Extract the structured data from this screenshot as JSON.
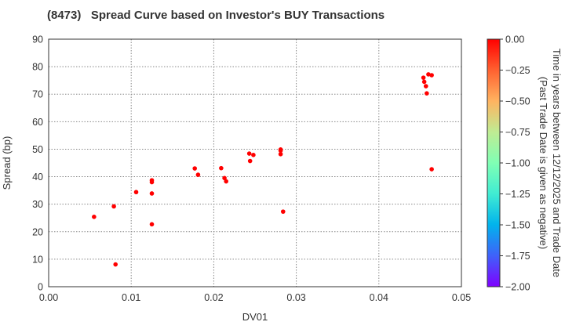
{
  "title": "(8473)   Spread Curve based on Investor's BUY Transactions",
  "colors": {
    "point": "#ff0000",
    "grid": "#888888",
    "axis": "#333333",
    "colormap": [
      "#7f00ff",
      "#3f61fa",
      "#01b3ec",
      "#40ecd3",
      "#80ffb4",
      "#bfec93",
      "#ffb360",
      "#ff6130",
      "#ff0000"
    ]
  },
  "colorbar": {
    "label_line1": "Time in years between 12/12/2025 and Trade Date",
    "label_line2": "(Past Trade Date is given as negative)",
    "ticks": [
      "0.00",
      "−0.25",
      "−0.50",
      "−0.75",
      "−1.00",
      "−1.25",
      "−1.50",
      "−1.75",
      "−2.00"
    ],
    "range": [
      -2.0,
      0.0
    ]
  },
  "chart_data": {
    "type": "scatter",
    "title": "(8473)   Spread Curve based on Investor's BUY Transactions",
    "xlabel": "DV01",
    "ylabel": "Spread (bp)",
    "xlim": [
      0.0,
      0.05
    ],
    "ylim": [
      0,
      90
    ],
    "xticks": [
      "0.00",
      "0.01",
      "0.02",
      "0.03",
      "0.04",
      "0.05"
    ],
    "yticks": [
      "0",
      "10",
      "20",
      "30",
      "40",
      "50",
      "60",
      "70",
      "80",
      "90"
    ],
    "grid": true,
    "legend": "colorbar right: Time in years between 12/12/2025 and Trade Date (Past Trade Date is given as negative), range -2.00 to 0.00",
    "points": [
      {
        "x": 0.0055,
        "y": 25.4,
        "t": 0.0
      },
      {
        "x": 0.0079,
        "y": 29.2,
        "t": 0.0
      },
      {
        "x": 0.0081,
        "y": 8.1,
        "t": 0.0
      },
      {
        "x": 0.0106,
        "y": 34.4,
        "t": 0.0
      },
      {
        "x": 0.0125,
        "y": 38.7,
        "t": 0.0
      },
      {
        "x": 0.0125,
        "y": 38.0,
        "t": 0.0
      },
      {
        "x": 0.0125,
        "y": 33.9,
        "t": 0.0
      },
      {
        "x": 0.0125,
        "y": 22.7,
        "t": 0.0
      },
      {
        "x": 0.0177,
        "y": 43.0,
        "t": 0.0
      },
      {
        "x": 0.0181,
        "y": 40.7,
        "t": 0.0
      },
      {
        "x": 0.0209,
        "y": 43.1,
        "t": 0.0
      },
      {
        "x": 0.0213,
        "y": 39.5,
        "t": 0.0
      },
      {
        "x": 0.0215,
        "y": 38.3,
        "t": 0.0
      },
      {
        "x": 0.0243,
        "y": 48.4,
        "t": 0.0
      },
      {
        "x": 0.0248,
        "y": 47.9,
        "t": 0.0
      },
      {
        "x": 0.0244,
        "y": 45.7,
        "t": 0.0
      },
      {
        "x": 0.0281,
        "y": 49.9,
        "t": 0.0
      },
      {
        "x": 0.0281,
        "y": 49.5,
        "t": 0.0
      },
      {
        "x": 0.0281,
        "y": 48.2,
        "t": 0.0
      },
      {
        "x": 0.0284,
        "y": 27.3,
        "t": 0.0
      },
      {
        "x": 0.046,
        "y": 77.2,
        "t": 0.0
      },
      {
        "x": 0.0464,
        "y": 76.9,
        "t": 0.0
      },
      {
        "x": 0.0454,
        "y": 76.0,
        "t": 0.0
      },
      {
        "x": 0.0455,
        "y": 74.5,
        "t": 0.0
      },
      {
        "x": 0.0457,
        "y": 72.9,
        "t": 0.0
      },
      {
        "x": 0.0458,
        "y": 70.3,
        "t": 0.0
      },
      {
        "x": 0.0464,
        "y": 42.7,
        "t": 0.0
      }
    ]
  }
}
